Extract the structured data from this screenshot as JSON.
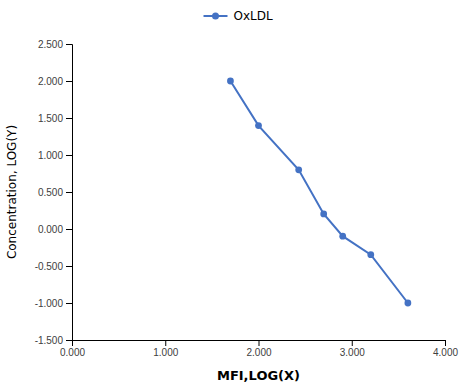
{
  "chart_data": {
    "type": "line",
    "xlabel": "MFI,LOG(X)",
    "ylabel": "Concentration, LOG(Y)",
    "x": [
      1.699,
      2.0,
      2.431,
      2.699,
      2.903,
      3.204,
      3.602
    ],
    "series": [
      {
        "name": "OxLDL",
        "color": "#4472C4",
        "marker": "circle",
        "values": [
          2.0,
          1.398,
          0.799,
          0.204,
          -0.097,
          -0.347,
          -1.0
        ]
      }
    ],
    "xlim": [
      0.0,
      4.0
    ],
    "ylim": [
      -1.5,
      2.5
    ],
    "xticks": [
      {
        "value": 0.0,
        "label": "0.000"
      },
      {
        "value": 1.0,
        "label": "1.000"
      },
      {
        "value": 2.0,
        "label": "2.000"
      },
      {
        "value": 3.0,
        "label": "3.000"
      },
      {
        "value": 4.0,
        "label": "4.000"
      }
    ],
    "yticks": [
      {
        "value": -1.5,
        "label": "-1.500"
      },
      {
        "value": -1.0,
        "label": "-1.000"
      },
      {
        "value": -0.5,
        "label": "-0.500"
      },
      {
        "value": 0.0,
        "label": "0.000"
      },
      {
        "value": 0.5,
        "label": "0.500"
      },
      {
        "value": 1.0,
        "label": "1.000"
      },
      {
        "value": 1.5,
        "label": "1.500"
      },
      {
        "value": 2.0,
        "label": "2.000"
      },
      {
        "value": 2.5,
        "label": "2.500"
      }
    ],
    "grid": false,
    "legend": "top"
  }
}
